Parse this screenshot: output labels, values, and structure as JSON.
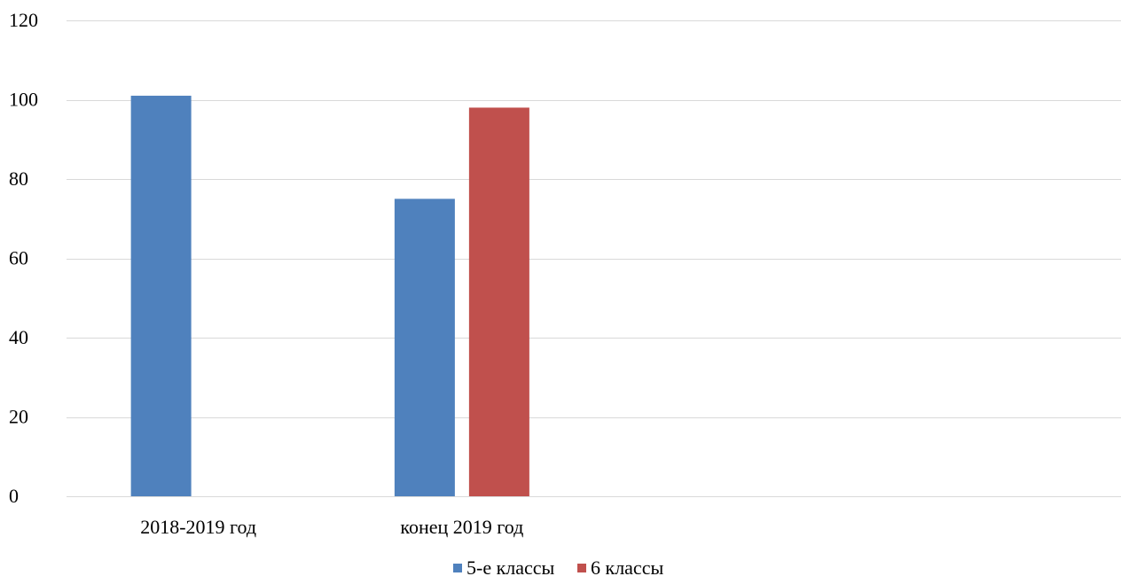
{
  "chart_data": {
    "type": "bar",
    "categories": [
      "2018-2019 год",
      "конец 2019 год",
      "",
      ""
    ],
    "series": [
      {
        "name": "5-е классы",
        "values": [
          101,
          75,
          null,
          null
        ],
        "color": "#4f81bd"
      },
      {
        "name": "6 классы",
        "values": [
          null,
          98,
          null,
          null
        ],
        "color": "#c0504d"
      }
    ],
    "ylim": [
      0,
      120
    ],
    "yticks": [
      0,
      20,
      40,
      60,
      80,
      100,
      120
    ],
    "grid": true,
    "legend_position": "bottom"
  }
}
